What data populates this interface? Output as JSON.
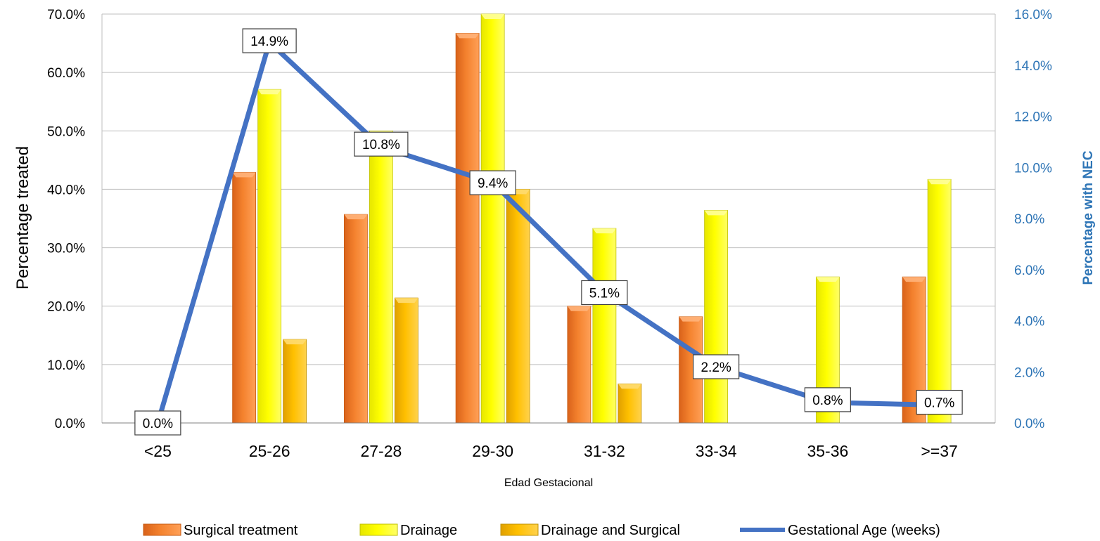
{
  "chart_data": {
    "type": "bar",
    "categories": [
      "<25",
      "25-26",
      "27-28",
      "29-30",
      "31-32",
      "33-34",
      "35-36",
      ">=37"
    ],
    "xlabel": "Edad Gestacional",
    "ylabel": "Percentage treated",
    "y2label": "Percentage with NEC",
    "ylim": [
      0,
      70
    ],
    "y2lim": [
      0,
      16
    ],
    "y_ticks": [
      "0.0%",
      "10.0%",
      "20.0%",
      "30.0%",
      "40.0%",
      "50.0%",
      "60.0%",
      "70.0%"
    ],
    "y2_ticks": [
      "0.0%",
      "2.0%",
      "4.0%",
      "6.0%",
      "8.0%",
      "10.0%",
      "12.0%",
      "14.0%",
      "16.0%"
    ],
    "grid": true,
    "legend_position": "bottom",
    "series": [
      {
        "name": "Surgical treatment",
        "kind": "bar",
        "axis": "left",
        "color": "#F4822E",
        "values": [
          0,
          42.9,
          35.7,
          66.7,
          20.0,
          18.2,
          0,
          25.0
        ]
      },
      {
        "name": "Drainage",
        "kind": "bar",
        "axis": "left",
        "color": "#FFFF00",
        "values": [
          0,
          57.1,
          50.0,
          70.0,
          33.3,
          36.4,
          25.0,
          41.7
        ]
      },
      {
        "name": "Drainage and Surgical",
        "kind": "bar",
        "axis": "left",
        "color": "#FFC000",
        "values": [
          0,
          14.3,
          21.4,
          40.0,
          6.7,
          0,
          0,
          0
        ]
      },
      {
        "name": "Gestational Age (weeks)",
        "kind": "line",
        "axis": "right",
        "color": "#4472C4",
        "values": [
          0.0,
          14.9,
          10.8,
          9.4,
          5.1,
          2.2,
          0.8,
          0.7
        ],
        "labels": [
          "0.0%",
          "14.9%",
          "10.8%",
          "9.4%",
          "5.1%",
          "2.2%",
          "0.8%",
          "0.7%"
        ]
      }
    ]
  }
}
